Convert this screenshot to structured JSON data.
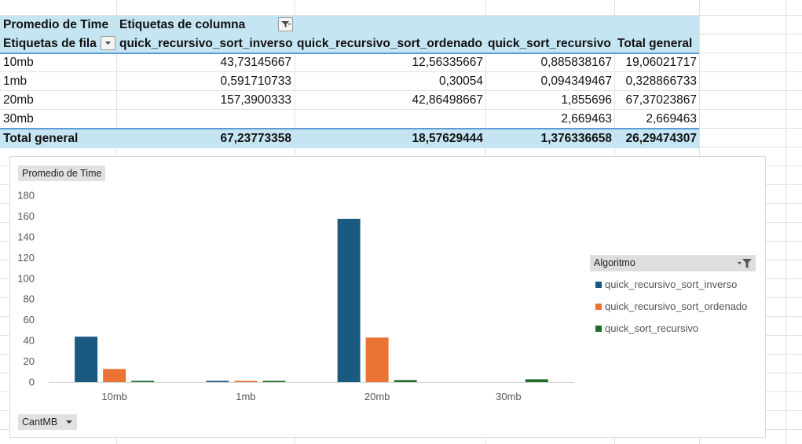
{
  "pivot": {
    "value_field": "Promedio de Time",
    "column_labels": "Etiquetas de columna",
    "row_labels": "Etiquetas de fila",
    "columns": [
      "quick_recursivo_sort_inverso",
      "quick_recursivo_sort_ordenado",
      "quick_sort_recursivo",
      "Total general"
    ],
    "rows": [
      {
        "label": "10mb",
        "values": [
          "43,73145667",
          "12,56335667",
          "0,885838167",
          "19,06021717"
        ]
      },
      {
        "label": "1mb",
        "values": [
          "0,591710733",
          "0,30054",
          "0,094349467",
          "0,328866733"
        ]
      },
      {
        "label": "20mb",
        "values": [
          "157,3900333",
          "42,86498667",
          "1,855696",
          "67,37023867"
        ]
      },
      {
        "label": "30mb",
        "values": [
          "",
          "",
          "2,669463",
          "2,669463"
        ]
      }
    ],
    "total": {
      "label": "Total general",
      "values": [
        "67,23773358",
        "18,57629444",
        "1,376336658",
        "26,29474307"
      ]
    }
  },
  "chart": {
    "value_button": "Promedio de Time",
    "axis_button": "CantMB",
    "legend_title": "Algoritmo"
  },
  "chart_data": {
    "type": "bar",
    "categories": [
      "10mb",
      "1mb",
      "20mb",
      "30mb"
    ],
    "series": [
      {
        "name": "quick_recursivo_sort_inverso",
        "color": "#1b5a80",
        "values": [
          43.73145667,
          0.591710733,
          157.3900333,
          null
        ]
      },
      {
        "name": "quick_recursivo_sort_ordenado",
        "color": "#ea7333",
        "values": [
          12.56335667,
          0.30054,
          42.86498667,
          null
        ]
      },
      {
        "name": "quick_sort_recursivo",
        "color": "#1e6b2a",
        "values": [
          0.885838167,
          0.094349467,
          1.855696,
          2.669463
        ]
      }
    ],
    "yticks": [
      "0",
      "20",
      "40",
      "60",
      "80",
      "100",
      "120",
      "140",
      "160",
      "180"
    ],
    "ylim": [
      0,
      180
    ],
    "grid": false,
    "legend": "right"
  },
  "icons": {
    "filter": "filter-icon",
    "dropdown": "chevron-down-icon"
  }
}
